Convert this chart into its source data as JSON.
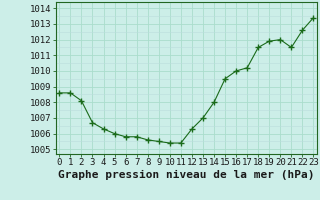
{
  "hours": [
    0,
    1,
    2,
    3,
    4,
    5,
    6,
    7,
    8,
    9,
    10,
    11,
    12,
    13,
    14,
    15,
    16,
    17,
    18,
    19,
    20,
    21,
    22,
    23
  ],
  "pressure": [
    1008.6,
    1008.6,
    1008.1,
    1006.7,
    1006.3,
    1006.0,
    1005.8,
    1005.8,
    1005.6,
    1005.5,
    1005.4,
    1005.4,
    1006.3,
    1007.0,
    1008.0,
    1009.5,
    1010.0,
    1010.2,
    1011.5,
    1011.9,
    1012.0,
    1011.5,
    1012.6,
    1013.4
  ],
  "line_color": "#1a6b1a",
  "marker": "+",
  "bg_color": "#cceee8",
  "grid_major_color": "#aaddcc",
  "grid_minor_color": "#bbdddd",
  "title": "Graphe pression niveau de la mer (hPa)",
  "xlabel_ticks": [
    "0",
    "1",
    "2",
    "3",
    "4",
    "5",
    "6",
    "7",
    "8",
    "9",
    "10",
    "11",
    "12",
    "13",
    "14",
    "15",
    "16",
    "17",
    "18",
    "19",
    "20",
    "21",
    "22",
    "23"
  ],
  "yticks": [
    1005,
    1006,
    1007,
    1008,
    1009,
    1010,
    1011,
    1012,
    1013,
    1014
  ],
  "ylim": [
    1004.7,
    1014.4
  ],
  "xlim": [
    -0.3,
    23.3
  ],
  "tick_fontsize": 6.5,
  "title_fontsize": 8,
  "axes_border_color": "#226622"
}
